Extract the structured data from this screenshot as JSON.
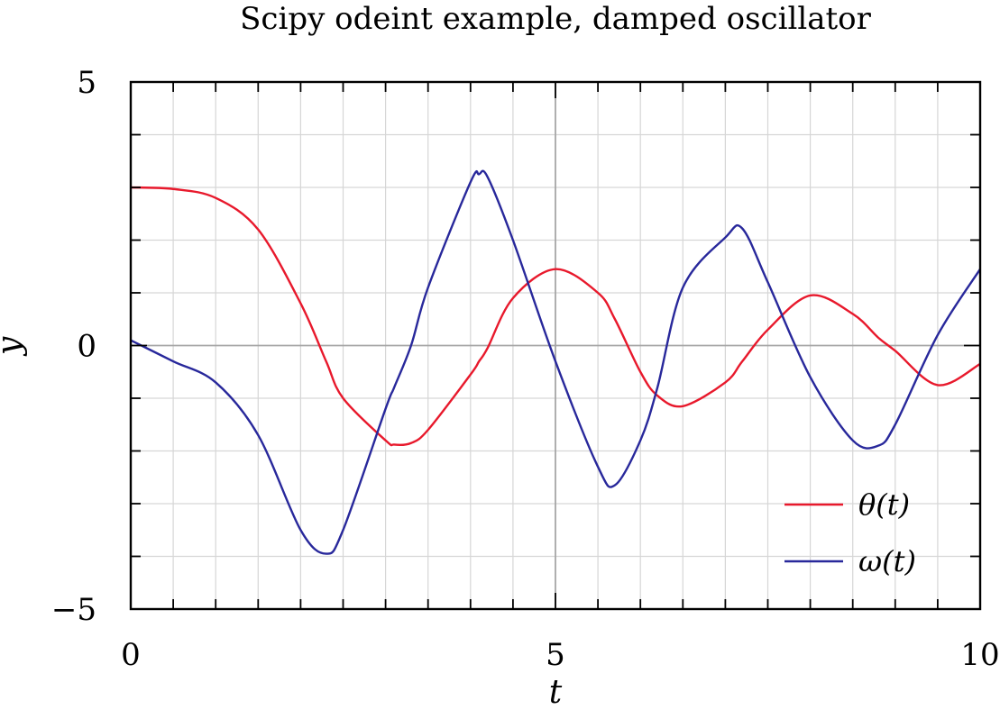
{
  "chart_data": {
    "type": "line",
    "title": "Scipy odeint example, damped oscillator",
    "xlabel": "t",
    "ylabel": "y",
    "xlim": [
      0,
      10
    ],
    "ylim": [
      -5,
      5
    ],
    "xticks": [
      0,
      5,
      10
    ],
    "xtick_labels": [
      "0",
      "5",
      "10"
    ],
    "yticks": [
      -5,
      0,
      5
    ],
    "ytick_labels": [
      "−5",
      "0",
      "5"
    ],
    "grid": true,
    "legend_position": "bottom-right",
    "colors": {
      "theta": "#e8192c",
      "omega": "#28289b",
      "grid": "#d6d6d6",
      "zero_line": "#a6a6a6"
    },
    "x": [
      0,
      0.5,
      1.0,
      1.5,
      2.0,
      2.3,
      2.5,
      3.0,
      3.1,
      3.3,
      3.5,
      4.0,
      4.1,
      4.2,
      4.5,
      5.0,
      5.5,
      5.7,
      6.0,
      6.2,
      6.5,
      7.0,
      7.2,
      7.5,
      8.0,
      8.5,
      8.8,
      9.0,
      9.5,
      10.0
    ],
    "series": [
      {
        "name": "θ(t)",
        "legend_label": "θ(t)",
        "values": [
          3.0,
          2.97,
          2.8,
          2.2,
          0.8,
          -0.3,
          -1.0,
          -1.8,
          -1.88,
          -1.85,
          -1.6,
          -0.55,
          -0.3,
          -0.05,
          0.9,
          1.45,
          1.0,
          0.5,
          -0.5,
          -0.95,
          -1.15,
          -0.7,
          -0.3,
          0.3,
          0.95,
          0.6,
          0.15,
          -0.1,
          -0.75,
          -0.35
        ]
      },
      {
        "name": "ω(t)",
        "legend_label": "ω(t)",
        "values": [
          0.1,
          -0.3,
          -0.7,
          -1.7,
          -3.5,
          -3.95,
          -3.5,
          -1.2,
          -0.8,
          0.0,
          1.1,
          3.1,
          3.25,
          3.2,
          2.0,
          -0.3,
          -2.3,
          -2.65,
          -1.8,
          -0.8,
          1.1,
          2.05,
          2.22,
          1.2,
          -0.6,
          -1.8,
          -1.9,
          -1.5,
          0.2,
          1.45
        ]
      }
    ]
  }
}
